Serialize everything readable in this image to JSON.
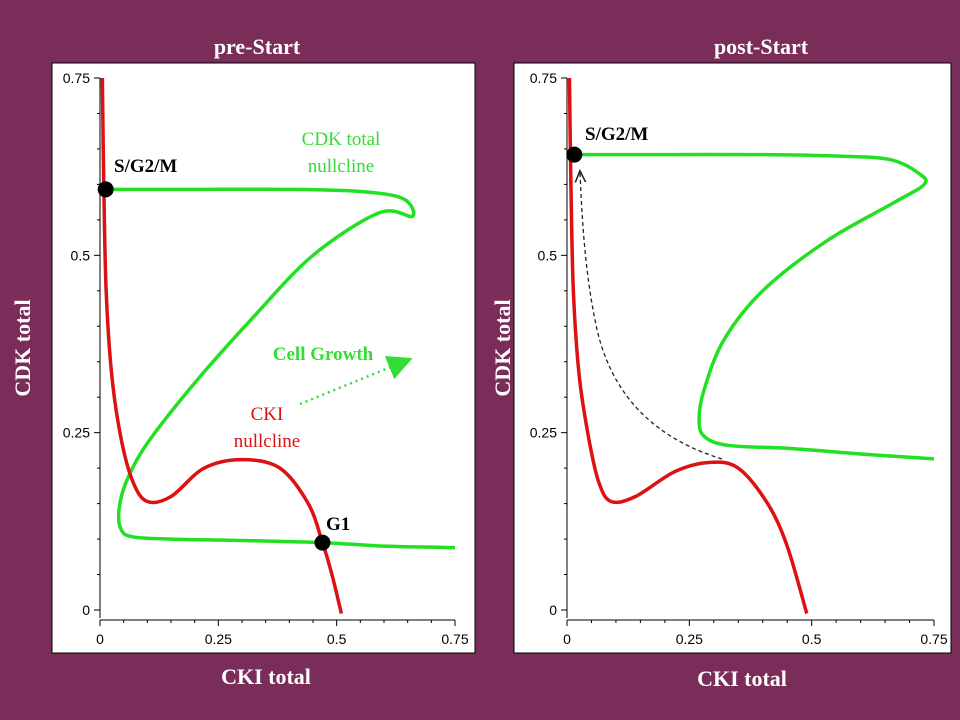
{
  "colors": {
    "background": "#7b2d5a",
    "cdk_nullcline": "#22e022",
    "cki_nullcline": "#dd1111",
    "growth_arrow": "#33dd33",
    "text": "#ffffff"
  },
  "chart_data": [
    {
      "type": "line",
      "title": "pre-Start",
      "xlabel": "CKI total",
      "ylabel": "CDK total",
      "xlim": [
        0,
        0.75
      ],
      "ylim": [
        0,
        0.75
      ],
      "xticks": [
        "0",
        "0.25",
        "0.5",
        "0.75"
      ],
      "yticks": [
        "0",
        "0.25",
        "0.5",
        "0.75"
      ],
      "series": [
        {
          "name": "CDK total nullcline",
          "color": "#22e022",
          "points": [
            [
              0.75,
              0.088
            ],
            [
              0.6,
              0.09
            ],
            [
              0.47,
              0.095
            ],
            [
              0.3,
              0.098
            ],
            [
              0.15,
              0.1
            ],
            [
              0.07,
              0.103
            ],
            [
              0.045,
              0.113
            ],
            [
              0.04,
              0.14
            ],
            [
              0.055,
              0.18
            ],
            [
              0.1,
              0.235
            ],
            [
              0.2,
              0.32
            ],
            [
              0.32,
              0.41
            ],
            [
              0.45,
              0.5
            ],
            [
              0.59,
              0.56
            ],
            [
              0.66,
              0.555
            ],
            [
              0.64,
              0.58
            ],
            [
              0.55,
              0.59
            ],
            [
              0.4,
              0.593
            ],
            [
              0.2,
              0.593
            ],
            [
              0.01,
              0.593
            ]
          ]
        },
        {
          "name": "CKI nullcline",
          "color": "#dd1111",
          "points": [
            [
              0.005,
              0.75
            ],
            [
              0.008,
              0.6
            ],
            [
              0.013,
              0.45
            ],
            [
              0.025,
              0.33
            ],
            [
              0.045,
              0.24
            ],
            [
              0.07,
              0.18
            ],
            [
              0.1,
              0.153
            ],
            [
              0.15,
              0.16
            ],
            [
              0.22,
              0.2
            ],
            [
              0.3,
              0.212
            ],
            [
              0.38,
              0.2
            ],
            [
              0.44,
              0.15
            ],
            [
              0.47,
              0.095
            ],
            [
              0.49,
              0.05
            ],
            [
              0.51,
              -0.005
            ]
          ]
        }
      ],
      "labels": {
        "cdk_nullcline": [
          "CDK total",
          "nullcline"
        ],
        "cki_nullcline": [
          "CKI",
          "nullcline"
        ],
        "growth": "Cell Growth"
      },
      "points": [
        {
          "label": "S/G2/M",
          "x": 0.012,
          "y": 0.593
        },
        {
          "label": "G1",
          "x": 0.47,
          "y": 0.095
        }
      ]
    },
    {
      "type": "line",
      "title": "post-Start",
      "xlabel": "CKI total",
      "ylabel": "CDK total",
      "xlim": [
        0,
        0.75
      ],
      "ylim": [
        0,
        0.75
      ],
      "xticks": [
        "0",
        "0.25",
        "0.5",
        "0.75"
      ],
      "yticks": [
        "0",
        "0.25",
        "0.5",
        "0.75"
      ],
      "series": [
        {
          "name": "CDK total nullcline",
          "color": "#22e022",
          "points": [
            [
              0.75,
              0.213
            ],
            [
              0.6,
              0.22
            ],
            [
              0.45,
              0.228
            ],
            [
              0.33,
              0.232
            ],
            [
              0.28,
              0.245
            ],
            [
              0.27,
              0.27
            ],
            [
              0.28,
              0.31
            ],
            [
              0.32,
              0.38
            ],
            [
              0.4,
              0.45
            ],
            [
              0.53,
              0.52
            ],
            [
              0.67,
              0.575
            ],
            [
              0.73,
              0.6
            ],
            [
              0.72,
              0.615
            ],
            [
              0.66,
              0.635
            ],
            [
              0.55,
              0.64
            ],
            [
              0.4,
              0.642
            ],
            [
              0.2,
              0.642
            ],
            [
              0.015,
              0.642
            ]
          ]
        },
        {
          "name": "CKI nullcline",
          "color": "#dd1111",
          "points": [
            [
              0.005,
              0.75
            ],
            [
              0.008,
              0.6
            ],
            [
              0.013,
              0.45
            ],
            [
              0.025,
              0.33
            ],
            [
              0.045,
              0.24
            ],
            [
              0.065,
              0.18
            ],
            [
              0.09,
              0.153
            ],
            [
              0.14,
              0.16
            ],
            [
              0.22,
              0.195
            ],
            [
              0.29,
              0.208
            ],
            [
              0.35,
              0.2
            ],
            [
              0.41,
              0.15
            ],
            [
              0.45,
              0.09
            ],
            [
              0.49,
              -0.005
            ]
          ]
        }
      ],
      "labels": {
        "trajectory": "dashed"
      },
      "points": [
        {
          "label": "S/G2/M",
          "x": 0.015,
          "y": 0.642
        }
      ]
    }
  ]
}
